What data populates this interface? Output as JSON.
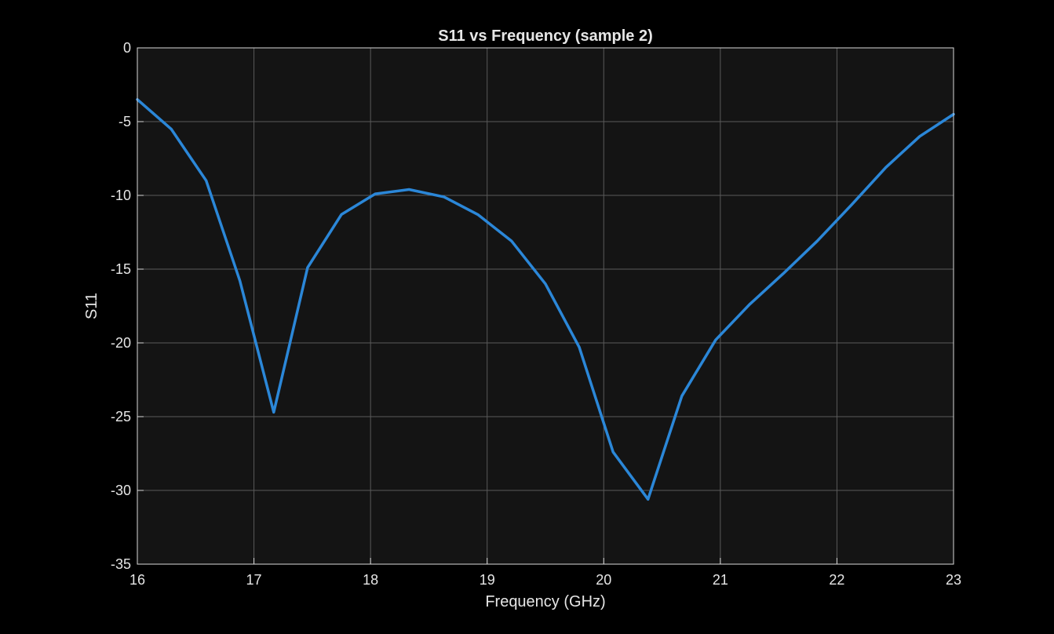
{
  "chart_data": {
    "type": "line",
    "title": "S11 vs Frequency (sample 2)",
    "xlabel": "Frequency (GHz)",
    "ylabel": "S11",
    "xlim": [
      16,
      23
    ],
    "ylim": [
      -35,
      0
    ],
    "xticks": [
      16,
      17,
      18,
      19,
      20,
      21,
      22,
      23
    ],
    "yticks": [
      0,
      -5,
      -10,
      -15,
      -20,
      -25,
      -30,
      -35
    ],
    "grid": true,
    "series": [
      {
        "color": "#2b87d8",
        "x": [
          16.0,
          16.29,
          16.59,
          16.88,
          17.17,
          17.46,
          17.75,
          18.04,
          18.33,
          18.63,
          18.92,
          19.21,
          19.5,
          19.79,
          20.08,
          20.38,
          20.67,
          20.96,
          21.25,
          21.54,
          21.83,
          22.13,
          22.42,
          22.71,
          23.0
        ],
        "y": [
          -3.5,
          -5.5,
          -9.0,
          -15.8,
          -24.7,
          -14.9,
          -11.3,
          -9.9,
          -9.6,
          -10.1,
          -11.3,
          -13.1,
          -16.0,
          -20.3,
          -27.4,
          -30.6,
          -23.6,
          -19.8,
          -17.4,
          -15.3,
          -13.1,
          -10.6,
          -8.1,
          -6.0,
          -4.5
        ]
      }
    ]
  },
  "colors": {
    "figure_bg": "#000000",
    "axes_bg": "#141414",
    "grid": "#5a5a5a",
    "axis": "#d9d9d9",
    "text": "#e6e6e6"
  }
}
